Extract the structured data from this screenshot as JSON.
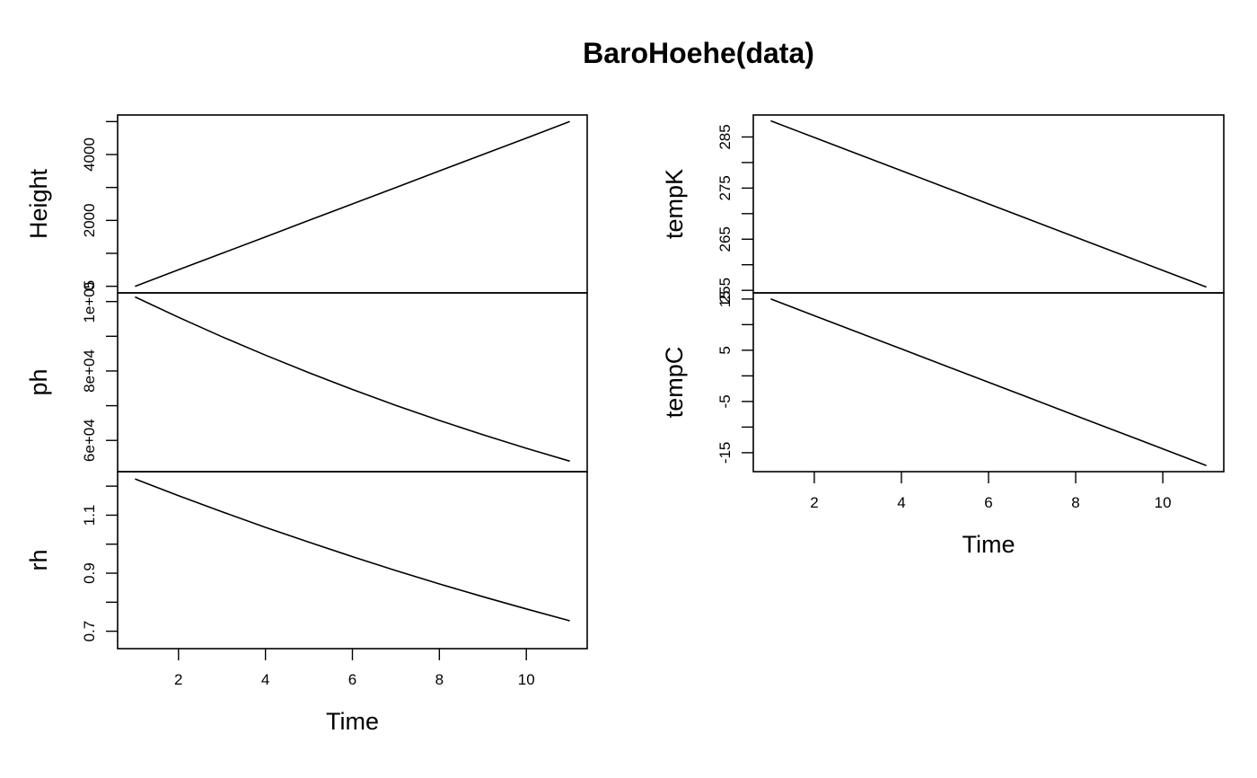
{
  "title": "BaroHoehe(data)",
  "chart_data": [
    {
      "type": "line",
      "ylabel": "Height",
      "xlabel": "",
      "x": [
        1,
        2,
        3,
        4,
        5,
        6,
        7,
        8,
        9,
        10,
        11
      ],
      "values": [
        0,
        500,
        1000,
        1500,
        2000,
        2500,
        3000,
        3500,
        4000,
        4500,
        5000
      ],
      "xlim": [
        0.6,
        11.4
      ],
      "ylim": [
        -200,
        5200
      ],
      "yticks": [
        0,
        2000,
        4000
      ],
      "ytick_labels": [
        "0",
        "2000",
        "4000"
      ],
      "yminor": [
        1000,
        3000,
        5000
      ],
      "xticks": [],
      "xtick_labels": []
    },
    {
      "type": "line",
      "ylabel": "ph",
      "xlabel": "",
      "x": [
        1,
        2,
        3,
        4,
        5,
        6,
        7,
        8,
        9,
        10,
        11
      ],
      "values": [
        101325,
        95460,
        89875,
        84556,
        79495,
        74682,
        70108,
        65764,
        61640,
        57728,
        54020
      ],
      "xlim": [
        0.6,
        11.4
      ],
      "ylim": [
        51000,
        102500
      ],
      "yticks": [
        60000,
        80000,
        100000
      ],
      "ytick_labels": [
        "6e+04",
        "8e+04",
        "1e+05"
      ],
      "yminor": [
        70000,
        90000
      ],
      "xticks": [],
      "xtick_labels": []
    },
    {
      "type": "line",
      "ylabel": "rh",
      "xlabel": "Time",
      "x": [
        1,
        2,
        3,
        4,
        5,
        6,
        7,
        8,
        9,
        10,
        11
      ],
      "values": [
        1.225,
        1.167,
        1.112,
        1.058,
        1.007,
        0.957,
        0.909,
        0.863,
        0.819,
        0.777,
        0.736
      ],
      "xlim": [
        0.6,
        11.4
      ],
      "ylim": [
        0.64,
        1.25
      ],
      "yticks": [
        0.7,
        0.9,
        1.1
      ],
      "ytick_labels": [
        "0.7",
        "0.9",
        "1.1"
      ],
      "yminor": [
        0.8,
        1.0,
        1.2
      ],
      "xticks": [
        2,
        4,
        6,
        8,
        10
      ],
      "xtick_labels": [
        "2",
        "4",
        "6",
        "8",
        "10"
      ]
    },
    {
      "type": "line",
      "ylabel": "tempK",
      "xlabel": "",
      "x": [
        1,
        2,
        3,
        4,
        5,
        6,
        7,
        8,
        9,
        10,
        11
      ],
      "values": [
        288.15,
        284.9,
        281.65,
        278.4,
        275.15,
        271.9,
        268.65,
        265.4,
        262.15,
        258.9,
        255.65
      ],
      "xlim": [
        0.6,
        11.4
      ],
      "ylim": [
        254.5,
        289.3
      ],
      "yticks": [
        255,
        265,
        275,
        285
      ],
      "ytick_labels": [
        "255",
        "265",
        "275",
        "285"
      ],
      "yminor": [
        260,
        270,
        280
      ],
      "xticks": [],
      "xtick_labels": []
    },
    {
      "type": "line",
      "ylabel": "tempC",
      "xlabel": "Time",
      "x": [
        1,
        2,
        3,
        4,
        5,
        6,
        7,
        8,
        9,
        10,
        11
      ],
      "values": [
        15,
        11.75,
        8.5,
        5.25,
        2,
        -1.25,
        -4.5,
        -7.75,
        -11,
        -14.25,
        -17.5
      ],
      "xlim": [
        0.6,
        11.4
      ],
      "ylim": [
        -18.7,
        16.2
      ],
      "yticks": [
        -15,
        -5,
        5,
        15
      ],
      "ytick_labels": [
        "-15",
        "-5",
        "5",
        "15"
      ],
      "yminor": [
        -10,
        0,
        10
      ],
      "xticks": [
        2,
        4,
        6,
        8,
        10
      ],
      "xtick_labels": [
        "2",
        "4",
        "6",
        "8",
        "10"
      ]
    }
  ]
}
